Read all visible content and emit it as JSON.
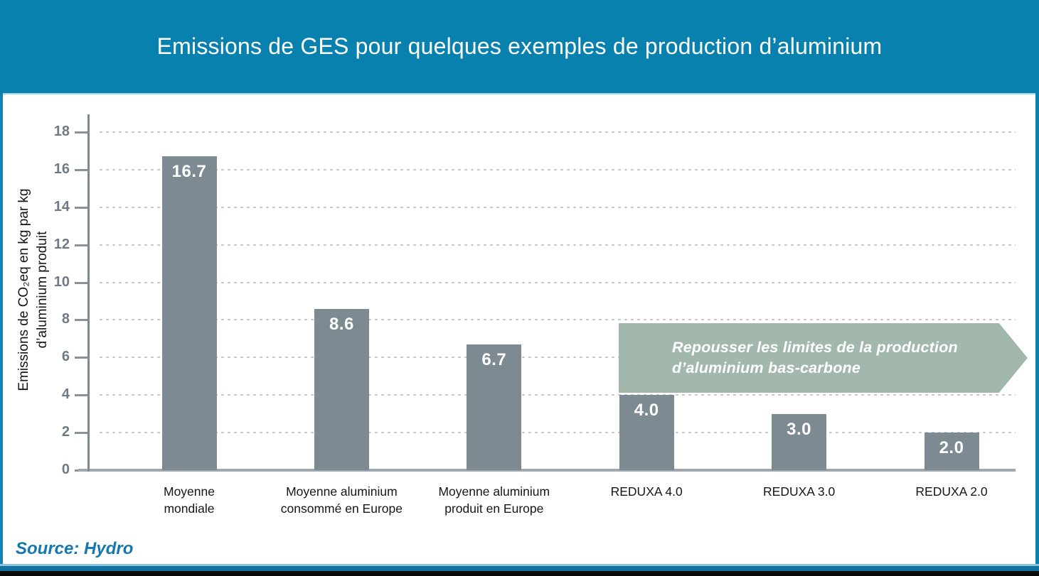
{
  "header": {
    "title": "Emissions de GES pour quelques exemples de production d’aluminium"
  },
  "chart_data": {
    "type": "bar",
    "title": "Emissions de GES pour quelques exemples de production d’aluminium",
    "ylabel": "Emissions de CO₂eq en kg par kg d’aluminium produit",
    "ylabel_lines": [
      "Emissions de CO₂eq en kg par kg",
      "d’aluminium produit"
    ],
    "categories": [
      "Moyenne mondiale",
      "Moyenne aluminium consommé en Europe",
      "Moyenne aluminium produit en Europe",
      "REDUXA 4.0",
      "REDUXA 3.0",
      "REDUXA 2.0"
    ],
    "category_lines": [
      [
        "Moyenne",
        "mondiale"
      ],
      [
        "Moyenne aluminium",
        "consommé en Europe"
      ],
      [
        "Moyenne aluminium",
        "produit en Europe"
      ],
      [
        "REDUXA 4.0"
      ],
      [
        "REDUXA 3.0"
      ],
      [
        "REDUXA 2.0"
      ]
    ],
    "values": [
      16.7,
      8.6,
      6.7,
      4.0,
      3.0,
      2.0
    ],
    "value_labels": [
      "16.7",
      "8.6",
      "6.7",
      "4.0",
      "3.0",
      "2.0"
    ],
    "yticks": [
      0,
      2,
      4,
      6,
      8,
      10,
      12,
      14,
      16,
      18
    ],
    "ylim": [
      0,
      19
    ],
    "grid": "dashed-horizontal",
    "legend": "none"
  },
  "annotation": {
    "line1": "Repousser les limites de la production",
    "line2": "d’aluminium bas-carbone"
  },
  "source": {
    "label": "Source: Hydro"
  },
  "colors": {
    "header_bg": "#0881AE",
    "bar": "#7D8A92",
    "arrow": "#A3B8AD",
    "arrow_text": "#FFFFFF",
    "grid": "#C6CACC",
    "axis": "#7E8A92",
    "baseline": "#9EA8AE",
    "tick_text": "#6F7B84",
    "source_text": "#1478AE",
    "footer_blue": "#1173A3",
    "footer_black": "#0A0A0A"
  }
}
